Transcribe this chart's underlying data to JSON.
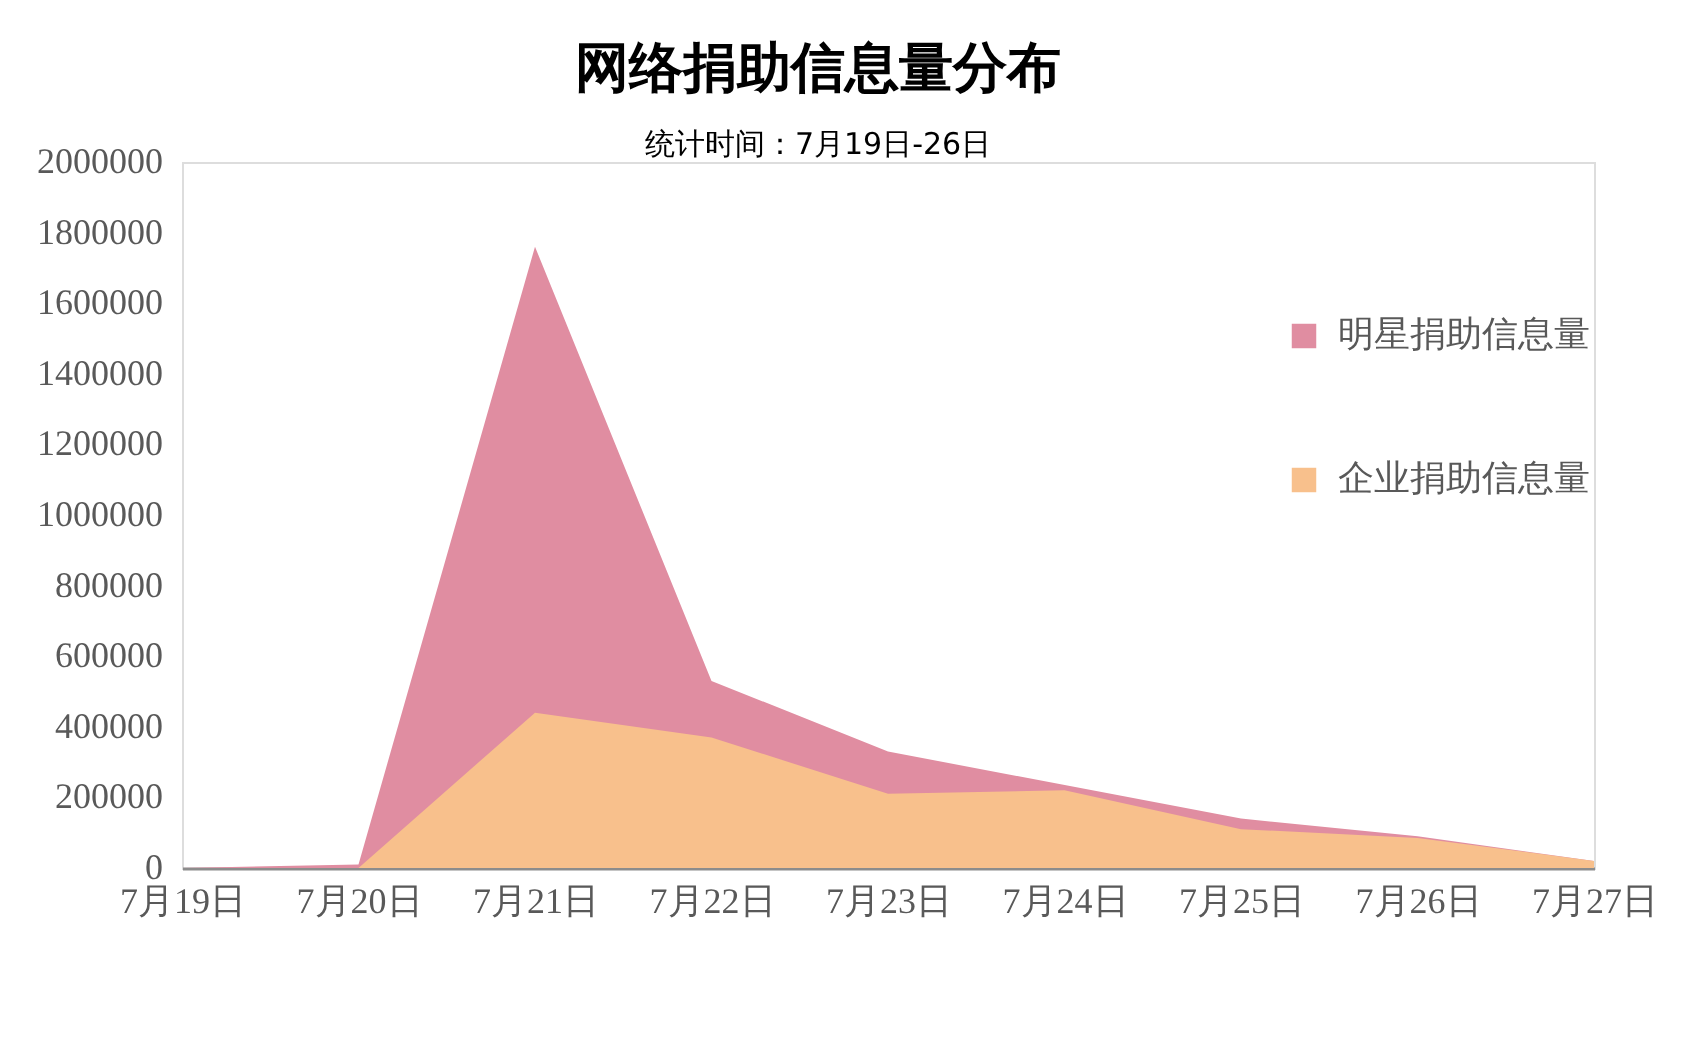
{
  "chart_data": {
    "type": "area",
    "title": "网络捐助信息量分布",
    "subtitle": "统计时间：7月19日-26日",
    "categories": [
      "7月19日",
      "7月20日",
      "7月21日",
      "7月22日",
      "7月23日",
      "7月24日",
      "7月25日",
      "7月26日",
      "7月27日"
    ],
    "series": [
      {
        "name": "明星捐助信息量",
        "color": "#e08da1",
        "values": [
          0,
          10000,
          1760000,
          530000,
          330000,
          null,
          140000,
          90000,
          20000
        ]
      },
      {
        "name": "企业捐助信息量",
        "color": "#f8c08c",
        "values": [
          0,
          0,
          440000,
          370000,
          210000,
          220000,
          110000,
          85000,
          20000
        ]
      }
    ],
    "ylim": [
      0,
      2000000
    ],
    "yticks": [
      0,
      200000,
      400000,
      600000,
      800000,
      1000000,
      1200000,
      1400000,
      1600000,
      1800000,
      2000000
    ],
    "legend": "top right"
  }
}
